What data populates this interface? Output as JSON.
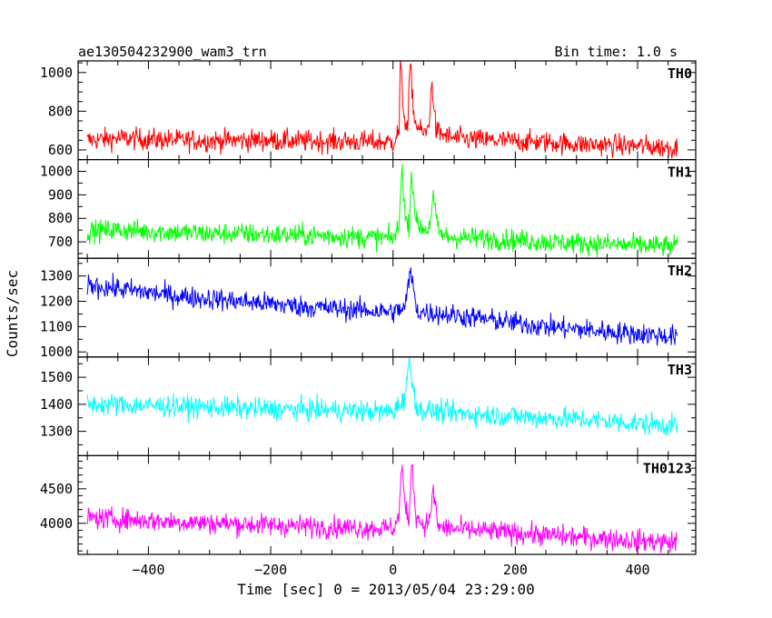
{
  "header": {
    "title": "ae130504232900_wam3_trn",
    "bin_time": "Bin time: 1.0 s"
  },
  "chart_data": {
    "type": "line",
    "x_axis": {
      "label": "Time [sec] 0 = 2013/05/04 23:29:00",
      "range": [
        -515,
        495
      ],
      "major_ticks": [
        -400,
        -200,
        0,
        200,
        400
      ],
      "tick_labels": [
        "−400",
        "−200",
        "0",
        "200",
        "400"
      ],
      "minor_step": 50
    },
    "y_axis_label": "Counts/sec",
    "panels": [
      {
        "name": "TH0",
        "color": "#ff0000",
        "ylim": [
          550,
          1060
        ],
        "yticks": [
          600,
          800,
          1000
        ],
        "ytick_labels": [
          "600",
          "800",
          "1000"
        ],
        "minor_step": 50,
        "data": [
          [
            -500,
            650
          ],
          [
            -450,
            660
          ],
          [
            -400,
            655
          ],
          [
            -350,
            650
          ],
          [
            -300,
            648
          ],
          [
            -250,
            650
          ],
          [
            -200,
            650
          ],
          [
            -150,
            645
          ],
          [
            -100,
            645
          ],
          [
            -50,
            642
          ],
          [
            0,
            640
          ],
          [
            10,
            700
          ],
          [
            12,
            1050
          ],
          [
            18,
            780
          ],
          [
            24,
            700
          ],
          [
            28,
            1050
          ],
          [
            35,
            750
          ],
          [
            45,
            700
          ],
          [
            52,
            680
          ],
          [
            58,
            720
          ],
          [
            64,
            950
          ],
          [
            70,
            700
          ],
          [
            80,
            680
          ],
          [
            100,
            660
          ],
          [
            150,
            650
          ],
          [
            200,
            645
          ],
          [
            250,
            640
          ],
          [
            300,
            630
          ],
          [
            350,
            625
          ],
          [
            400,
            620
          ],
          [
            465,
            610
          ]
        ]
      },
      {
        "name": "TH1",
        "color": "#00ff00",
        "ylim": [
          630,
          1050
        ],
        "yticks": [
          700,
          800,
          900,
          1000
        ],
        "ytick_labels": [
          "700",
          "800",
          "900",
          "1000"
        ],
        "minor_step": 50,
        "data": [
          [
            -500,
            745
          ],
          [
            -450,
            750
          ],
          [
            -400,
            745
          ],
          [
            -350,
            740
          ],
          [
            -300,
            735
          ],
          [
            -250,
            735
          ],
          [
            -200,
            730
          ],
          [
            -150,
            728
          ],
          [
            -100,
            725
          ],
          [
            -50,
            720
          ],
          [
            0,
            715
          ],
          [
            10,
            760
          ],
          [
            14,
            1040
          ],
          [
            20,
            800
          ],
          [
            26,
            760
          ],
          [
            30,
            1000
          ],
          [
            38,
            780
          ],
          [
            48,
            760
          ],
          [
            58,
            750
          ],
          [
            66,
            890
          ],
          [
            74,
            740
          ],
          [
            90,
            720
          ],
          [
            150,
            715
          ],
          [
            200,
            708
          ],
          [
            250,
            700
          ],
          [
            300,
            695
          ],
          [
            350,
            690
          ],
          [
            400,
            685
          ],
          [
            465,
            680
          ]
        ]
      },
      {
        "name": "TH2",
        "color": "#0000ff",
        "ylim": [
          980,
          1370
        ],
        "yticks": [
          1000,
          1100,
          1200,
          1300
        ],
        "ytick_labels": [
          "1000",
          "1100",
          "1200",
          "1300"
        ],
        "minor_step": 50,
        "data": [
          [
            -500,
            1265
          ],
          [
            -450,
            1250
          ],
          [
            -400,
            1235
          ],
          [
            -350,
            1220
          ],
          [
            -300,
            1210
          ],
          [
            -250,
            1200
          ],
          [
            -200,
            1190
          ],
          [
            -150,
            1180
          ],
          [
            -100,
            1172
          ],
          [
            -50,
            1165
          ],
          [
            0,
            1158
          ],
          [
            20,
            1175
          ],
          [
            28,
            1320
          ],
          [
            40,
            1160
          ],
          [
            100,
            1145
          ],
          [
            150,
            1130
          ],
          [
            200,
            1115
          ],
          [
            250,
            1100
          ],
          [
            300,
            1090
          ],
          [
            350,
            1080
          ],
          [
            400,
            1072
          ],
          [
            465,
            1060
          ]
        ]
      },
      {
        "name": "TH3",
        "color": "#00ffff",
        "ylim": [
          1210,
          1575
        ],
        "yticks": [
          1300,
          1400,
          1500
        ],
        "ytick_labels": [
          "1300",
          "1400",
          "1500"
        ],
        "minor_step": 50,
        "data": [
          [
            -500,
            1400
          ],
          [
            -450,
            1398
          ],
          [
            -400,
            1395
          ],
          [
            -350,
            1392
          ],
          [
            -300,
            1390
          ],
          [
            -250,
            1385
          ],
          [
            -200,
            1382
          ],
          [
            -150,
            1380
          ],
          [
            -100,
            1378
          ],
          [
            -50,
            1375
          ],
          [
            0,
            1372
          ],
          [
            18,
            1420
          ],
          [
            26,
            1550
          ],
          [
            40,
            1380
          ],
          [
            100,
            1368
          ],
          [
            150,
            1362
          ],
          [
            200,
            1356
          ],
          [
            250,
            1350
          ],
          [
            300,
            1345
          ],
          [
            350,
            1338
          ],
          [
            400,
            1330
          ],
          [
            465,
            1320
          ]
        ]
      },
      {
        "name": "TH0123",
        "color": "#ff00ff",
        "ylim": [
          3550,
          4980
        ],
        "yticks": [
          4000,
          4500
        ],
        "ytick_labels": [
          "4000",
          "4500"
        ],
        "minor_step": 100,
        "data": [
          [
            -500,
            4080
          ],
          [
            -450,
            4060
          ],
          [
            -400,
            4040
          ],
          [
            -350,
            4020
          ],
          [
            -300,
            4005
          ],
          [
            -250,
            3990
          ],
          [
            -200,
            3975
          ],
          [
            -150,
            3960
          ],
          [
            -100,
            3945
          ],
          [
            -50,
            3935
          ],
          [
            0,
            3930
          ],
          [
            10,
            4100
          ],
          [
            14,
            4900
          ],
          [
            20,
            4200
          ],
          [
            26,
            4000
          ],
          [
            30,
            4900
          ],
          [
            38,
            4100
          ],
          [
            50,
            3980
          ],
          [
            58,
            4000
          ],
          [
            66,
            4450
          ],
          [
            74,
            3950
          ],
          [
            100,
            3920
          ],
          [
            150,
            3890
          ],
          [
            200,
            3860
          ],
          [
            250,
            3830
          ],
          [
            300,
            3800
          ],
          [
            350,
            3780
          ],
          [
            400,
            3750
          ],
          [
            465,
            3720
          ]
        ]
      }
    ]
  }
}
